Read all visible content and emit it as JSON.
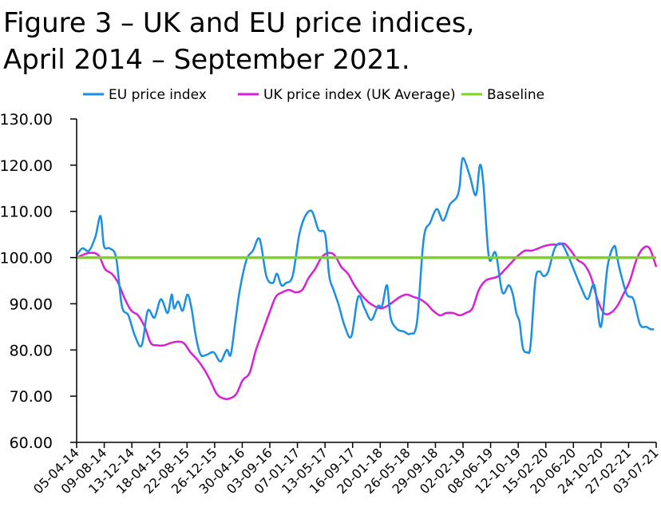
{
  "title": {
    "line1": "Figure 3 – UK and EU price indices,",
    "line2": "April 2014 – September 2021."
  },
  "colors": {
    "eu": "#1a8fe3",
    "uk": "#d81fd3",
    "baseline": "#7ed321",
    "axis": "#000000"
  },
  "chart_data": {
    "type": "line",
    "ylim": [
      60,
      130
    ],
    "yticks": [
      "130.00",
      "120.00",
      "110.00",
      "100.00",
      "90.00",
      "80.00",
      "70.00",
      "60.00"
    ],
    "x_tick_labels": [
      "05-04-14",
      "09-08-14",
      "13-12-14",
      "18-04-15",
      "22-08-15",
      "26-12-15",
      "30-04-16",
      "03-09-16",
      "07-01-17",
      "13-05-17",
      "16-09-17",
      "20-01-18",
      "26-05-18",
      "29-09-18",
      "02-02-19",
      "08-06-19",
      "12-10-19",
      "15-02-20",
      "20-06-20",
      "24-10-20",
      "27-02-21",
      "03-07-21"
    ],
    "legend": {
      "position": "top",
      "entries": [
        "EU price index",
        "UK price index (UK Average)",
        "Baseline"
      ]
    },
    "series": [
      {
        "name": "EU price index",
        "color": "#1a8fe3",
        "x": [
          "2014-04-05",
          "2014-05-01",
          "2014-06-01",
          "2014-07-01",
          "2014-07-25",
          "2014-08-10",
          "2014-09-05",
          "2014-10-05",
          "2014-11-01",
          "2014-12-01",
          "2015-01-01",
          "2015-02-01",
          "2015-03-01",
          "2015-04-01",
          "2015-05-01",
          "2015-06-01",
          "2015-06-20",
          "2015-07-01",
          "2015-07-20",
          "2015-08-10",
          "2015-09-01",
          "2015-09-20",
          "2015-10-10",
          "2015-11-01",
          "2015-12-01",
          "2016-01-01",
          "2016-02-01",
          "2016-03-01",
          "2016-03-20",
          "2016-04-10",
          "2016-05-01",
          "2016-06-01",
          "2016-07-01",
          "2016-08-01",
          "2016-09-01",
          "2016-10-01",
          "2016-10-20",
          "2016-11-10",
          "2016-12-01",
          "2017-01-01",
          "2017-02-01",
          "2017-03-01",
          "2017-04-01",
          "2017-05-01",
          "2017-06-01",
          "2017-06-20",
          "2017-07-10",
          "2017-08-01",
          "2017-09-01",
          "2017-10-01",
          "2017-11-01",
          "2017-12-01",
          "2018-01-01",
          "2018-02-01",
          "2018-02-20",
          "2018-03-15",
          "2018-04-01",
          "2018-05-01",
          "2018-06-01",
          "2018-07-01",
          "2018-08-01",
          "2018-09-01",
          "2018-10-01",
          "2018-11-01",
          "2018-12-01",
          "2019-01-01",
          "2019-02-01",
          "2019-02-15",
          "2019-03-01",
          "2019-04-01",
          "2019-05-01",
          "2019-05-20",
          "2019-06-05",
          "2019-07-01",
          "2019-08-01",
          "2019-09-01",
          "2019-10-01",
          "2019-10-20",
          "2019-11-05",
          "2019-11-20",
          "2019-12-05",
          "2019-12-25",
          "2020-01-10",
          "2020-02-01",
          "2020-02-20",
          "2020-03-10",
          "2020-04-01",
          "2020-05-01",
          "2020-06-01",
          "2020-07-01",
          "2020-08-01",
          "2020-09-01",
          "2020-10-01",
          "2020-11-01",
          "2020-12-01",
          "2021-01-01",
          "2021-02-01",
          "2021-02-15",
          "2021-03-01",
          "2021-04-01",
          "2021-05-01",
          "2021-06-01",
          "2021-07-01",
          "2021-07-20",
          "2021-08-05"
        ],
        "y": [
          100.5,
          102.0,
          101.5,
          104.5,
          109.0,
          102.5,
          102.0,
          100.0,
          89.5,
          87.5,
          83.0,
          81.0,
          88.5,
          87.0,
          91.0,
          88.0,
          92.0,
          89.0,
          90.5,
          88.5,
          92.0,
          89.0,
          83.0,
          79.0,
          79.0,
          79.5,
          77.5,
          80.0,
          79.0,
          86.0,
          93.0,
          99.5,
          101.5,
          104.0,
          96.0,
          94.5,
          96.5,
          94.0,
          94.5,
          96.0,
          105.0,
          109.0,
          110.0,
          106.0,
          105.0,
          96.0,
          93.0,
          90.0,
          85.0,
          83.0,
          91.5,
          89.0,
          86.5,
          89.5,
          89.5,
          94.0,
          87.0,
          84.5,
          84.0,
          83.5,
          86.0,
          104.0,
          107.5,
          110.5,
          108.0,
          111.5,
          113.0,
          115.5,
          121.5,
          118.0,
          113.5,
          120.0,
          116.0,
          100.0,
          101.0,
          92.5,
          94.0,
          92.0,
          88.0,
          86.0,
          80.5,
          79.5,
          81.0,
          95.0,
          97.0,
          96.0,
          97.0,
          102.0,
          103.0,
          100.5,
          97.0,
          93.5,
          91.0,
          94.0,
          85.0,
          98.0,
          102.5,
          100.0,
          97.0,
          92.0,
          91.0,
          85.5,
          85.0,
          84.5,
          84.5
        ]
      },
      {
        "name": "UK price index (UK Average)",
        "color": "#d81fd3",
        "x": [
          "2014-04-05",
          "2014-06-01",
          "2014-07-15",
          "2014-08-15",
          "2014-09-15",
          "2014-10-15",
          "2014-11-15",
          "2014-12-15",
          "2015-01-15",
          "2015-02-15",
          "2015-03-15",
          "2015-04-15",
          "2015-05-15",
          "2015-06-15",
          "2015-07-15",
          "2015-08-15",
          "2015-09-15",
          "2015-10-15",
          "2015-11-15",
          "2015-12-15",
          "2016-01-15",
          "2016-02-15",
          "2016-03-15",
          "2016-04-15",
          "2016-05-15",
          "2016-06-15",
          "2016-07-15",
          "2016-08-15",
          "2016-09-15",
          "2016-10-15",
          "2016-11-15",
          "2016-12-15",
          "2017-01-15",
          "2017-02-15",
          "2017-03-15",
          "2017-04-15",
          "2017-05-15",
          "2017-06-15",
          "2017-07-15",
          "2017-08-15",
          "2017-09-15",
          "2017-10-15",
          "2017-11-15",
          "2017-12-15",
          "2018-01-15",
          "2018-02-15",
          "2018-03-15",
          "2018-04-15",
          "2018-05-15",
          "2018-06-15",
          "2018-07-15",
          "2018-08-15",
          "2018-09-15",
          "2018-10-15",
          "2018-11-15",
          "2018-12-15",
          "2019-01-15",
          "2019-02-15",
          "2019-03-15",
          "2019-04-15",
          "2019-05-15",
          "2019-06-15",
          "2019-07-15",
          "2019-08-15",
          "2019-09-15",
          "2019-10-15",
          "2019-11-15",
          "2019-12-15",
          "2020-01-15",
          "2020-02-15",
          "2020-03-15",
          "2020-04-15",
          "2020-05-15",
          "2020-06-15",
          "2020-07-15",
          "2020-08-15",
          "2020-09-15",
          "2020-10-15",
          "2020-11-15",
          "2020-12-15",
          "2021-01-15",
          "2021-02-15",
          "2021-03-15",
          "2021-04-15",
          "2021-05-15",
          "2021-06-15",
          "2021-07-15",
          "2021-08-15"
        ],
        "y": [
          100.0,
          101.0,
          100.5,
          97.5,
          96.5,
          94.5,
          91.0,
          88.5,
          87.5,
          85.0,
          81.5,
          81.0,
          81.0,
          81.5,
          81.8,
          81.5,
          79.5,
          78.0,
          76.0,
          73.5,
          70.5,
          69.5,
          69.5,
          70.5,
          73.5,
          75.0,
          80.0,
          84.0,
          88.0,
          91.5,
          92.5,
          93.0,
          92.5,
          93.0,
          95.5,
          97.5,
          100.0,
          101.0,
          100.5,
          98.0,
          96.5,
          94.0,
          92.0,
          90.5,
          89.5,
          89.0,
          89.5,
          90.5,
          91.5,
          92.0,
          91.5,
          91.0,
          90.0,
          88.5,
          87.5,
          88.0,
          88.0,
          87.5,
          88.0,
          89.0,
          93.0,
          95.0,
          95.5,
          96.0,
          97.5,
          99.0,
          100.5,
          101.5,
          101.5,
          102.0,
          102.5,
          102.8,
          102.8,
          103.0,
          101.5,
          99.5,
          98.5,
          96.0,
          91.0,
          88.0,
          88.0,
          89.5,
          92.0,
          95.0,
          99.5,
          102.0,
          102.0,
          98.0
        ]
      },
      {
        "name": "Baseline",
        "color": "#7ed321",
        "x": [
          "2014-04-05",
          "2021-08-15"
        ],
        "y": [
          100,
          100
        ]
      }
    ]
  }
}
